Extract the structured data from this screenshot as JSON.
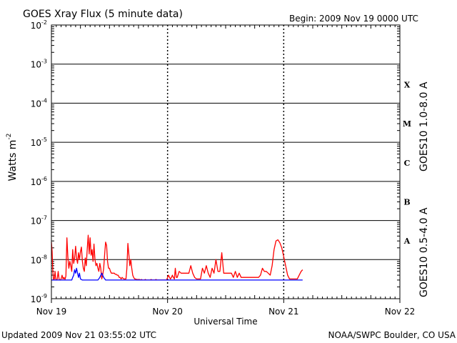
{
  "chart_data": {
    "type": "line",
    "title": "GOES Xray Flux (5 minute data)",
    "begin_label": "Begin:  2009 Nov 19 0000 UTC",
    "xlabel": "Universal Time",
    "ylabel": "Watts m",
    "ylabel_sup": "-2",
    "yscale": "log",
    "ylim": [
      1e-09,
      0.01
    ],
    "xlim_hours": [
      0,
      72
    ],
    "y_tick_labels": [
      {
        "base": "10",
        "exp": "-9",
        "value": 1e-09
      },
      {
        "base": "10",
        "exp": "-8",
        "value": 1e-08
      },
      {
        "base": "10",
        "exp": "-7",
        "value": 1e-07
      },
      {
        "base": "10",
        "exp": "-6",
        "value": 1e-06
      },
      {
        "base": "10",
        "exp": "-5",
        "value": 1e-05
      },
      {
        "base": "10",
        "exp": "-4",
        "value": 0.0001
      },
      {
        "base": "10",
        "exp": "-3",
        "value": 0.001
      },
      {
        "base": "10",
        "exp": "-2",
        "value": 0.01
      }
    ],
    "x_tick_labels": [
      {
        "label": "Nov 19",
        "hour": 0
      },
      {
        "label": "Nov 20",
        "hour": 24
      },
      {
        "label": "Nov 21",
        "hour": 48
      },
      {
        "label": "Nov 22",
        "hour": 72
      }
    ],
    "flare_classes": [
      {
        "label": "X",
        "value": 0.0003
      },
      {
        "label": "M",
        "value": 3e-05
      },
      {
        "label": "C",
        "value": 3e-06
      },
      {
        "label": "B",
        "value": 3e-07
      },
      {
        "label": "A",
        "value": 3e-08
      }
    ],
    "series": [
      {
        "name": "GOES10 1.0-8.0 A",
        "color": "#ff0000",
        "x": [
          0.0,
          0.15,
          0.3,
          0.45,
          0.6,
          0.75,
          0.9,
          1.0,
          1.2,
          1.4,
          1.6,
          1.8,
          2.0,
          2.2,
          2.4,
          2.6,
          2.8,
          3.0,
          3.2,
          3.4,
          3.6,
          3.8,
          4.0,
          4.2,
          4.4,
          4.6,
          4.8,
          5.0,
          5.2,
          5.4,
          5.6,
          5.8,
          6.0,
          6.2,
          6.4,
          6.6,
          6.8,
          7.0,
          7.2,
          7.4,
          7.6,
          7.8,
          8.0,
          8.2,
          8.4,
          8.6,
          8.8,
          9.0,
          9.2,
          9.4,
          9.6,
          9.8,
          10.0,
          10.2,
          10.4,
          10.6,
          10.8,
          11.0,
          11.2,
          11.4,
          11.6,
          11.8,
          12.0,
          12.2,
          12.4,
          12.6,
          12.8,
          13.0,
          13.2,
          13.4,
          13.6,
          13.8,
          14.0,
          14.2,
          14.4,
          14.6,
          14.8,
          15.0,
          15.2,
          15.4,
          15.6,
          15.8,
          16.0,
          16.2,
          16.4,
          16.6,
          16.8,
          17.0,
          17.2,
          17.4,
          17.6,
          17.8,
          18.0,
          18.2,
          18.4,
          18.6,
          18.8,
          19.0,
          19.2,
          19.4,
          19.6,
          19.8,
          20.0,
          20.2,
          20.4,
          20.6,
          20.8,
          21.0,
          21.2,
          21.4,
          21.6,
          21.8,
          22.0,
          22.2,
          22.4,
          22.6,
          22.8,
          23.0,
          23.2,
          23.4,
          23.6,
          23.8,
          24.0,
          24.2,
          24.4,
          24.6,
          24.8,
          25.0,
          25.2,
          25.4,
          25.6,
          25.8,
          26.0,
          26.4,
          26.8,
          27.2,
          27.6,
          28.0,
          28.4,
          28.8,
          29.2,
          29.6,
          30.0,
          30.4,
          30.8,
          31.2,
          31.6,
          32.0,
          32.4,
          32.8,
          33.2,
          33.6,
          34.0,
          34.4,
          34.8,
          35.2,
          35.6,
          36.0,
          36.4,
          36.8,
          37.2,
          37.6,
          38.0,
          38.4,
          38.8,
          39.2,
          39.6,
          40.0,
          40.4,
          40.8,
          41.2,
          41.6,
          42.0,
          42.4,
          42.8,
          43.2,
          43.6,
          44.0,
          44.4,
          44.8,
          45.2,
          45.6,
          46.0,
          46.4,
          46.8,
          47.2,
          47.6,
          48.0,
          48.4,
          48.8,
          49.2,
          49.6,
          50.0,
          50.4,
          50.8,
          51.2,
          51.6,
          51.9
        ],
        "values": [
          2.8e-08,
          1.6e-08,
          5e-09,
          3e-09,
          3.2e-09,
          5e-09,
          3.2e-09,
          3e-09,
          3.1e-09,
          5e-09,
          3.1e-09,
          3e-09,
          3.2e-09,
          4e-09,
          3.2e-09,
          3.5e-09,
          3.1e-09,
          3.8e-09,
          3.6e-08,
          1.2e-08,
          6e-09,
          9e-09,
          7e-09,
          5e-09,
          1.8e-08,
          8e-09,
          1.1e-08,
          2.2e-08,
          1.1e-08,
          8e-09,
          1.5e-08,
          1e-08,
          1.6e-08,
          2.1e-08,
          9e-09,
          6e-09,
          5e-09,
          1.1e-08,
          7e-09,
          1.9e-08,
          4.2e-08,
          1.4e-08,
          3.6e-08,
          1.3e-08,
          1.8e-08,
          9e-09,
          2.5e-08,
          1e-08,
          7e-09,
          8e-09,
          6e-09,
          5e-09,
          8e-09,
          6e-09,
          3.2e-09,
          4e-09,
          6e-09,
          1.4e-08,
          2.8e-08,
          2.3e-08,
          9e-09,
          6e-09,
          6e-09,
          5e-09,
          4.5e-09,
          4.5e-09,
          4.5e-09,
          4.5e-09,
          4.2e-09,
          4.2e-09,
          4e-09,
          4e-09,
          3.5e-09,
          3.5e-09,
          3.2e-09,
          3.5e-09,
          3.3e-09,
          3.2e-09,
          3.2e-09,
          3.2e-09,
          6e-09,
          2.6e-08,
          1.4e-08,
          7e-09,
          1e-08,
          6e-09,
          4e-09,
          3.5e-09,
          3.2e-09,
          3.2e-09,
          3.1e-09,
          3.1e-09,
          3.1e-09,
          3.1e-09,
          3e-09,
          3.1e-09,
          3e-09,
          3e-09,
          3e-09,
          3.1e-09,
          3e-09,
          3e-09,
          3e-09,
          3e-09,
          3e-09,
          3.1e-09,
          3e-09,
          3e-09,
          3e-09,
          3e-09,
          3.1e-09,
          3e-09,
          3e-09,
          3e-09,
          3e-09,
          3e-09,
          3e-09,
          3e-09,
          3e-09,
          3e-09,
          3e-09,
          3e-09,
          3.5e-09,
          4e-09,
          3.5e-09,
          3.2e-09,
          3.5e-09,
          4e-09,
          3.5e-09,
          3.2e-09,
          6e-09,
          3.5e-09,
          3.5e-09,
          5e-09,
          4.5e-09,
          4.5e-09,
          4.5e-09,
          4.5e-09,
          4.5e-09,
          7e-09,
          4.5e-09,
          3.5e-09,
          3.2e-09,
          3.2e-09,
          3.2e-09,
          6e-09,
          4.5e-09,
          7e-09,
          4.5e-09,
          3.5e-09,
          6e-09,
          4.5e-09,
          1e-08,
          5e-09,
          5e-09,
          1.5e-08,
          4.5e-09,
          4.5e-09,
          4.5e-09,
          4.5e-09,
          4.5e-09,
          3.5e-09,
          5e-09,
          3.5e-09,
          4.5e-09,
          3.5e-09,
          3.5e-09,
          3.5e-09,
          3.5e-09,
          3.5e-09,
          3.5e-09,
          3.5e-09,
          3.5e-09,
          3.5e-09,
          3.5e-09,
          4e-09,
          6e-09,
          5e-09,
          5e-09,
          4.5e-09,
          4e-09,
          7e-09,
          1.8e-08,
          3e-08,
          3.2e-08,
          2.7e-08,
          2e-08,
          1.2e-08,
          7e-09,
          4e-09,
          3.2e-09,
          3.2e-09,
          3.2e-09,
          3.2e-09,
          3.2e-09,
          4e-09,
          5e-09,
          5.5e-09
        ]
      },
      {
        "name": "GOES10 0.5-4.0 A",
        "color": "#0000ff",
        "x": [
          0.0,
          0.4,
          0.8,
          1.2,
          1.6,
          2.0,
          2.4,
          2.8,
          3.0,
          3.2,
          3.4,
          3.6,
          3.8,
          4.0,
          4.2,
          4.4,
          4.6,
          4.8,
          5.0,
          5.2,
          5.4,
          5.6,
          5.8,
          6.0,
          6.4,
          6.8,
          7.2,
          7.6,
          8.0,
          8.4,
          8.8,
          9.2,
          9.6,
          10.0,
          10.4,
          10.8,
          11.2,
          11.6,
          12.0,
          16.0,
          20.0,
          24.0,
          28.0,
          32.0,
          36.0,
          40.0,
          44.0,
          48.0,
          51.9
        ],
        "values": [
          3e-09,
          3e-09,
          3e-09,
          3e-09,
          3e-09,
          3e-09,
          3e-09,
          3e-09,
          3e-09,
          3e-09,
          3e-09,
          3e-09,
          3e-09,
          3e-09,
          3e-09,
          3.5e-09,
          4e-09,
          5.5e-09,
          4.5e-09,
          6e-09,
          4.5e-09,
          3.5e-09,
          4.5e-09,
          3.2e-09,
          3e-09,
          3e-09,
          3e-09,
          3e-09,
          3e-09,
          3e-09,
          3e-09,
          3e-09,
          3e-09,
          3.5e-09,
          4.5e-09,
          3.5e-09,
          3e-09,
          3e-09,
          3e-09,
          3e-09,
          3e-09,
          3e-09,
          3e-09,
          3e-09,
          3e-09,
          3e-09,
          3e-09,
          3e-09,
          3e-09
        ]
      }
    ],
    "grid": true,
    "legend": "right-vertical"
  },
  "footer": {
    "updated": "Updated 2009 Nov 21 03:55:02 UTC",
    "source": "NOAA/SWPC Boulder, CO USA"
  }
}
